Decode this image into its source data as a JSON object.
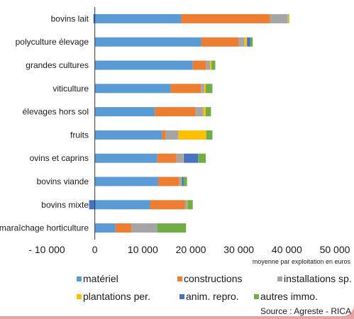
{
  "chart_data": {
    "type": "bar",
    "orientation": "horizontal",
    "stacked": true,
    "categories": [
      "bovins lait",
      "polyculture élevage",
      "grandes cultures",
      "viticulture",
      "élevages hors sol",
      "fruits",
      "ovins et caprins",
      "bovins viande",
      "bovins mixte",
      "maraîchage horticulture"
    ],
    "series": [
      {
        "name": "matériel",
        "color": "#5b9bd5",
        "values": [
          18000,
          22200,
          20400,
          15800,
          12500,
          14000,
          13000,
          13200,
          11500,
          4300
        ]
      },
      {
        "name": "constructions",
        "color": "#ed7d31",
        "values": [
          18500,
          7800,
          2800,
          6300,
          8500,
          800,
          4000,
          4300,
          7300,
          3300
        ]
      },
      {
        "name": "installations sp.",
        "color": "#a5a5a5",
        "values": [
          3700,
          1200,
          800,
          700,
          1600,
          2600,
          1400,
          500,
          400,
          5400
        ]
      },
      {
        "name": "plantations per.",
        "color": "#ffc000",
        "values": [
          200,
          500,
          300,
          300,
          500,
          5800,
          100,
          100,
          100,
          0
        ]
      },
      {
        "name": "anim. repro.",
        "color": "#4472c4",
        "values": [
          -300,
          700,
          0,
          0,
          0,
          0,
          3000,
          400,
          -1200,
          0
        ]
      },
      {
        "name": "autres immo.",
        "color": "#70ad47",
        "values": [
          100,
          500,
          800,
          1400,
          1100,
          1300,
          1600,
          700,
          1100,
          6000
        ]
      }
    ],
    "xlim": [
      -10000,
      50000
    ],
    "xticks": [
      "- 10 000",
      "0",
      "10 000",
      "20 000",
      "30 000",
      "40 000",
      "50 000"
    ],
    "xlabel": "moyenne par exploitation en euros",
    "legend_position": "bottom",
    "source": "Source : Agreste - RICA",
    "frame_color": "#e7a3a3"
  }
}
